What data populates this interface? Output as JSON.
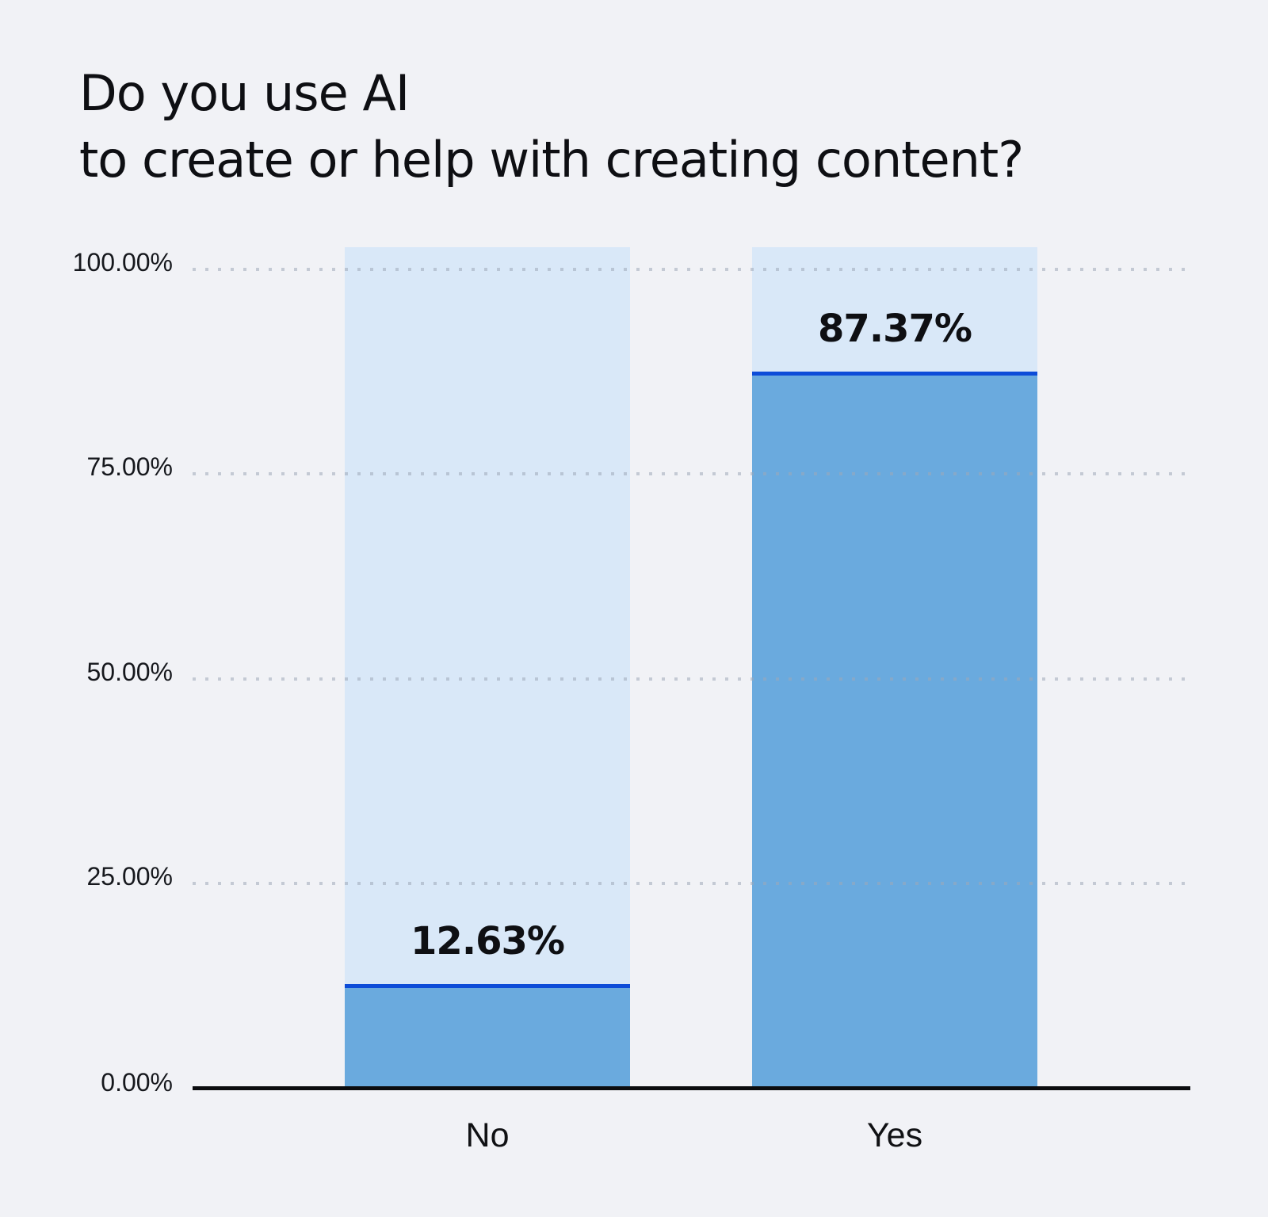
{
  "title": {
    "line1": "Do you use AI",
    "line2": "to create or help with creating content?"
  },
  "chart_data": {
    "type": "bar",
    "title": "Do you use AI to create or help with creating content?",
    "categories": [
      "No",
      "Yes"
    ],
    "values": [
      12.63,
      87.37
    ],
    "value_labels": [
      "12.63%",
      "87.37%"
    ],
    "xlabel": "",
    "ylabel": "",
    "y_ticks": [
      "100.00%",
      "75.00%",
      "50.00%",
      "25.00%",
      "0.00%"
    ],
    "ylim": [
      0,
      100
    ],
    "grid": "horizontal-dotted",
    "legend_position": "none",
    "track_max_percent": 102.5,
    "colors": {
      "background": "#f1f2f6",
      "bar_track": "#d9e8f8",
      "bar_fill": "#6aaade",
      "bar_top_line": "#0d4cd8",
      "gridline": "#9ea8b8",
      "axis_line": "#0b0c0f",
      "text": "#0e0f13"
    }
  }
}
